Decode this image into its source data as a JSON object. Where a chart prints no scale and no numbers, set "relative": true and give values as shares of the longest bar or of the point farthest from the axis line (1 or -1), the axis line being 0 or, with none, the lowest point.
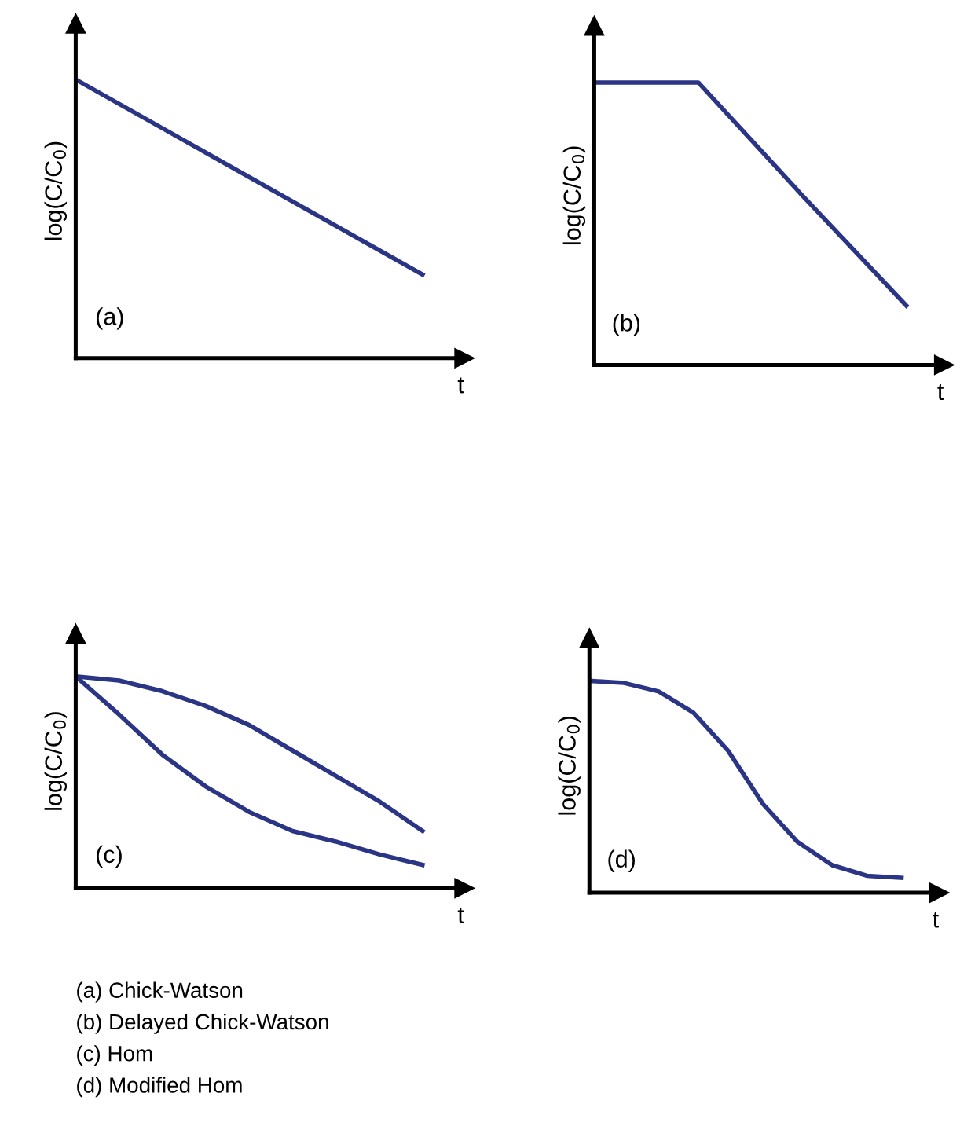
{
  "chart_data": [
    {
      "type": "line",
      "relative": true,
      "ylabel": "log(C/C$_{0}$)",
      "xlabel": "t",
      "categories": [
        null,
        null
      ],
      "annotations": [
        "(a)"
      ],
      "series": [
        {
          "color": "#2b3585",
          "values": [
            1,
            0.3
          ]
        }
      ]
    },
    {
      "type": "line",
      "relative": true,
      "ylabel": "log(C/C$_{0}$)",
      "xlabel": "t",
      "categories": [
        null,
        null,
        null,
        null
      ],
      "annotations": [
        "(b)"
      ],
      "series": [
        {
          "color": "#2b3585",
          "values": [
            1,
            1,
            0.6,
            0.21
          ]
        }
      ]
    },
    {
      "type": "line",
      "relative": true,
      "ylabel": "log(C/C$_{0}$)",
      "xlabel": "t",
      "categories": [
        null,
        null,
        null,
        null,
        null,
        null,
        null,
        null,
        null
      ],
      "annotations": [
        "(c)"
      ],
      "series": [
        {
          "color": "#2b3585",
          "values": [
            1,
            0.98,
            0.93,
            0.86,
            0.77,
            0.65,
            0.53,
            0.41,
            0.27
          ]
        },
        {
          "color": "#2b3585",
          "values": [
            1,
            0.82,
            0.63,
            0.48,
            0.36,
            0.27,
            0.22,
            0.16,
            0.11
          ]
        }
      ]
    },
    {
      "type": "line",
      "relative": true,
      "ylabel": "log(C/C$_{0}$)",
      "xlabel": "t",
      "categories": [
        null,
        null,
        null,
        null,
        null,
        null,
        null,
        null,
        null,
        null
      ],
      "annotations": [
        "(d)",
        "(a) Chick-Watson",
        "(b) Delayed Chick-Watson",
        "(c) Hom",
        "(d) Modified Hom"
      ],
      "series": [
        {
          "color": "#2b3585",
          "values": [
            1,
            0.99,
            0.95,
            0.85,
            0.67,
            0.42,
            0.24,
            0.13,
            0.08,
            0.07
          ]
        }
      ]
    }
  ]
}
